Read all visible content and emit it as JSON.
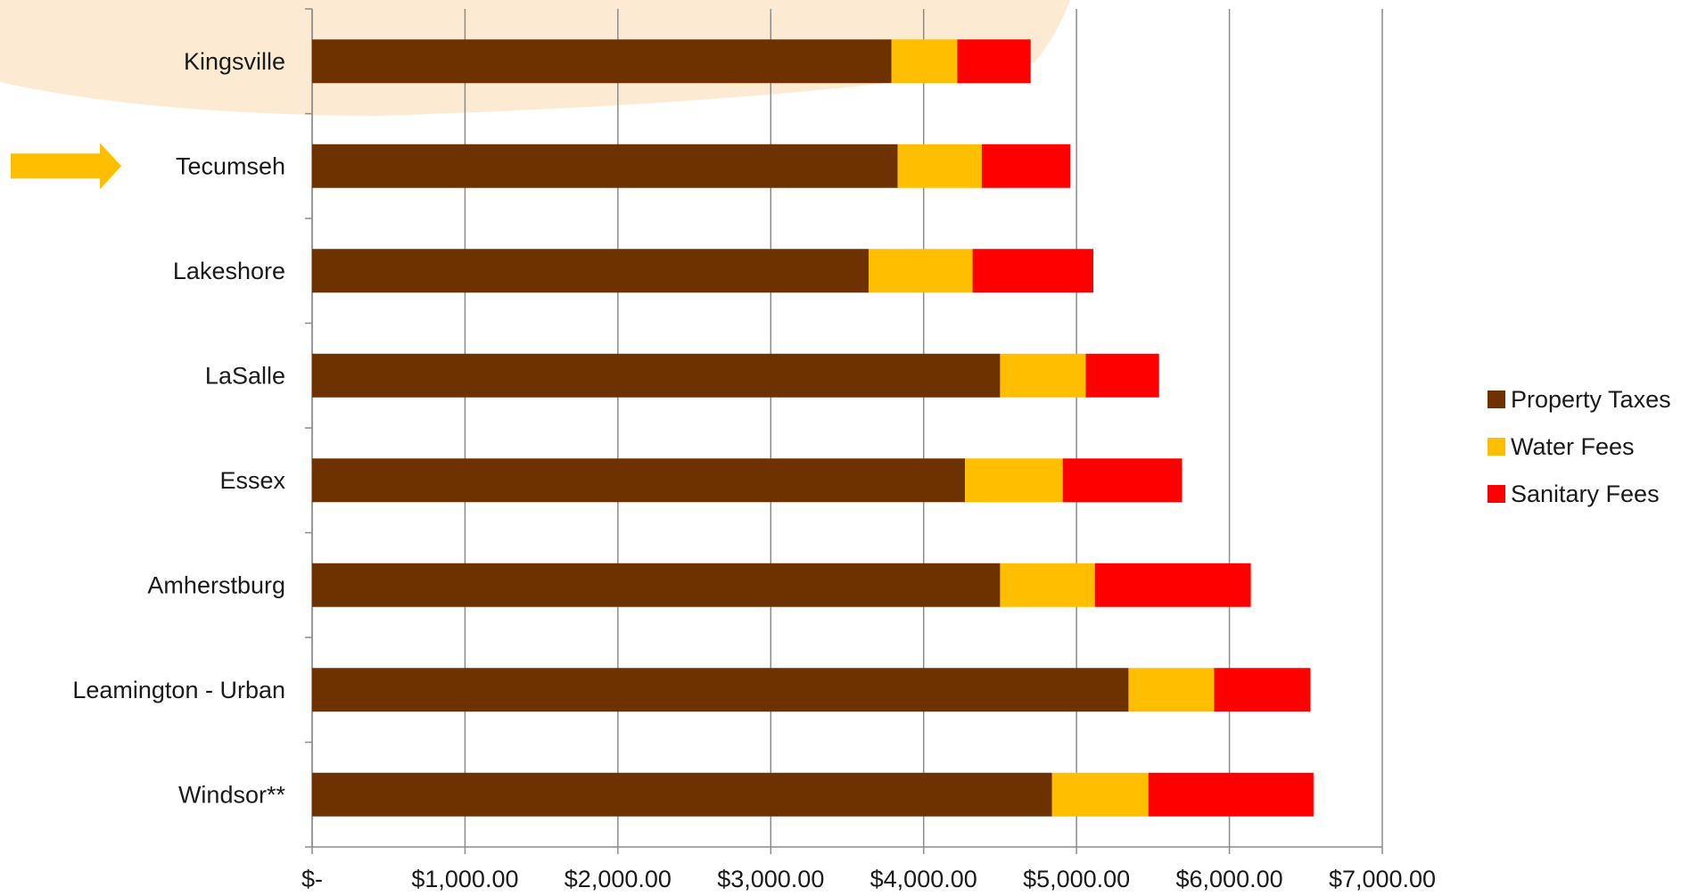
{
  "chart_data": {
    "type": "bar",
    "orientation": "horizontal",
    "stacked": true,
    "categories": [
      "Kingsville",
      "Tecumseh",
      "Lakeshore",
      "LaSalle",
      "Essex",
      "Amherstburg",
      "Leamington - Urban",
      "Windsor**"
    ],
    "series": [
      {
        "name": "Property Taxes",
        "color": "#6E3200",
        "values": [
          3790,
          3830,
          3640,
          4500,
          4270,
          4500,
          5340,
          4840
        ]
      },
      {
        "name": "Water Fees",
        "color": "#FFBE00",
        "values": [
          430,
          550,
          680,
          560,
          640,
          620,
          560,
          630
        ]
      },
      {
        "name": "Sanitary Fees",
        "color": "#FF0000",
        "values": [
          480,
          580,
          790,
          480,
          780,
          1020,
          630,
          1080
        ]
      }
    ],
    "x_ticks": [
      "$-",
      "$1,000.00",
      "$2,000.00",
      "$3,000.00",
      "$4,000.00",
      "$5,000.00",
      "$6,000.00",
      "$7,000.00"
    ],
    "xlim": [
      0,
      7000
    ],
    "grid": "vertical",
    "legend_position": "right",
    "highlighted_category": "Tecumseh",
    "highlight_icon": "arrow-right-icon",
    "colors": {
      "background_swoosh": "#FCEBD2",
      "gridline": "#8C8C8C",
      "highlight_arrow": "#FFBE00"
    }
  }
}
